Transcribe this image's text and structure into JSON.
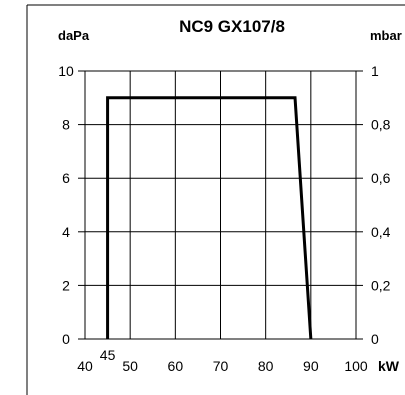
{
  "chart_data": {
    "type": "line",
    "title": "NC9 GX107/8",
    "ylabel_left": "daPa",
    "ylabel_right": "mbar",
    "xlabel": "kW",
    "xlim": [
      40,
      100
    ],
    "ylim": [
      0,
      10
    ],
    "x_ticks": [
      "40",
      "50",
      "60",
      "70",
      "80",
      "90",
      "100"
    ],
    "x_special_tick": "45",
    "y_ticks_left": [
      "0",
      "2",
      "4",
      "6",
      "8",
      "10"
    ],
    "y_ticks_right": [
      "0",
      "0,2",
      "0,4",
      "0,6",
      "0,8",
      "1"
    ],
    "grid": true,
    "series": [
      {
        "x": [
          45,
          45,
          86.5,
          90
        ],
        "y": [
          0,
          9,
          9,
          0
        ]
      }
    ]
  }
}
